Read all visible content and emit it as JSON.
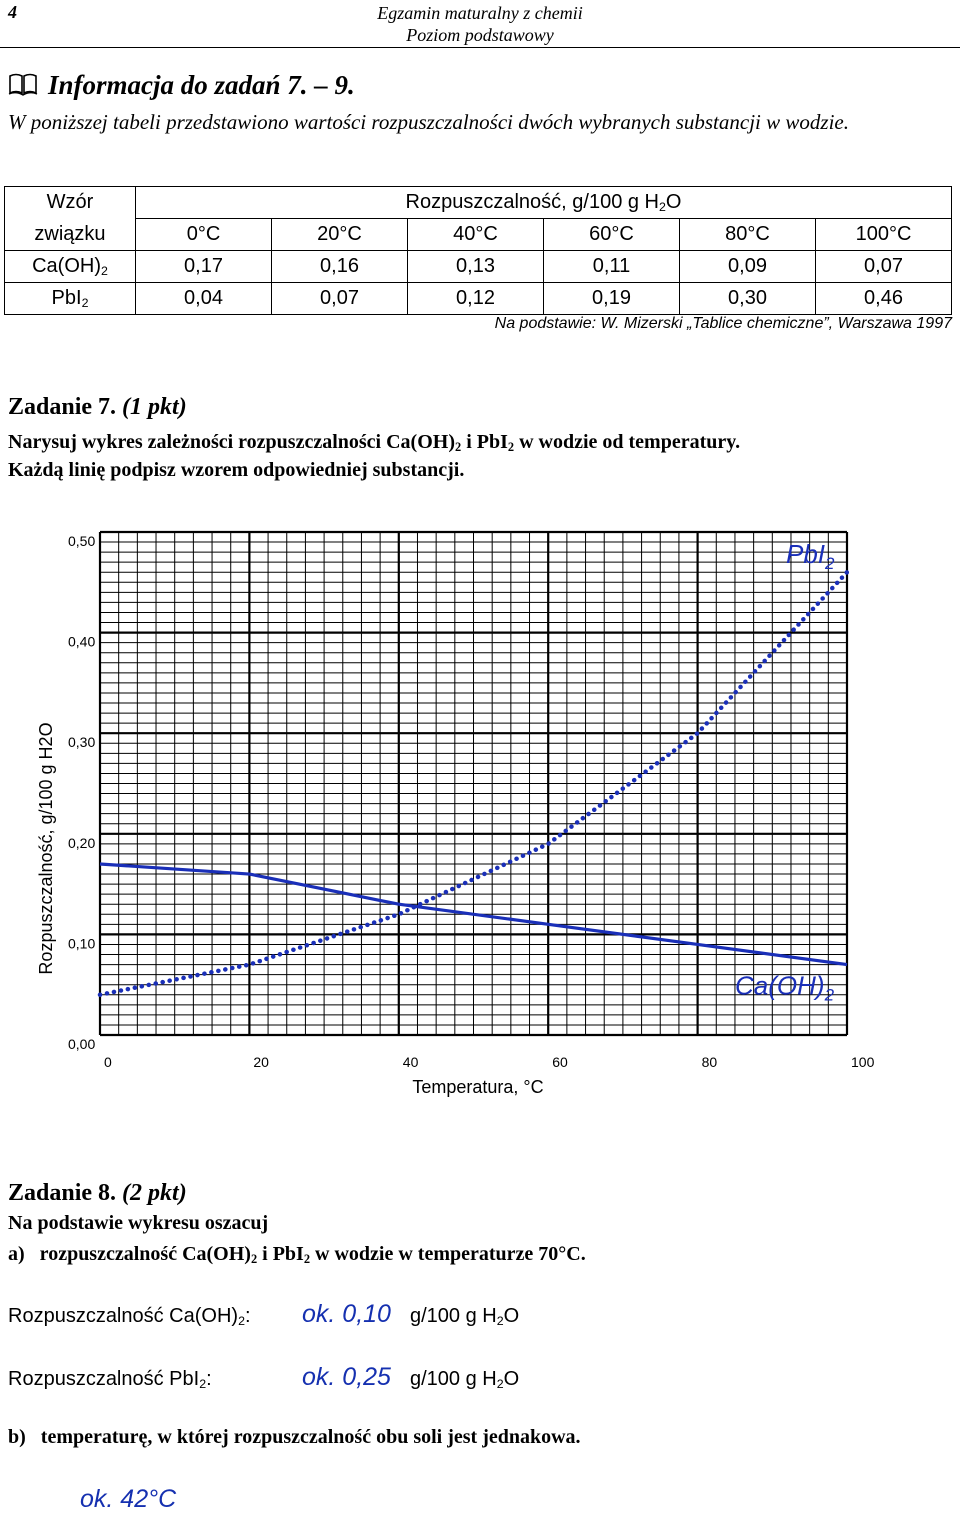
{
  "header": {
    "page_number": "4",
    "exam_line1": "Egzamin maturalny z chemii",
    "exam_line2": "Poziom podstawowy"
  },
  "info": {
    "icon": "book-icon",
    "heading": "Informacja do zadań 7. – 9.",
    "text": "W poniższej tabeli przedstawiono wartości rozpuszczalności dwóch wybranych substancji w wodzie."
  },
  "table": {
    "head_formula_line1": "Wzór",
    "head_formula_line2": "związku",
    "head_solubility_prefix": "Rozpuszczalność, g/100 g H",
    "head_solubility_sub": "2",
    "head_solubility_suffix": "O",
    "temperatures": [
      "0°C",
      "20°C",
      "40°C",
      "60°C",
      "80°C",
      "100°C"
    ],
    "rows": [
      {
        "formula": "Ca(OH)",
        "formula_sub": "2",
        "values": [
          "0,17",
          "0,16",
          "0,13",
          "0,11",
          "0,09",
          "0,07"
        ]
      },
      {
        "formula": "PbI",
        "formula_sub": "2",
        "values": [
          "0,04",
          "0,07",
          "0,12",
          "0,19",
          "0,30",
          "0,46"
        ]
      }
    ],
    "source": "Na podstawie: W. Mizerski „Tablice chemiczne”, Warszawa 1997"
  },
  "task7": {
    "title": "Zadanie 7.",
    "points": "(1 pkt)",
    "line1_a": "Narysuj wykres zależności rozpuszczalności Ca(OH)",
    "line1_b": " i PbI",
    "line1_c": " w wodzie od temperatury.",
    "sub": "2",
    "line2": "Każdą linię podpisz wzorem odpowiedniej substancji."
  },
  "chart_data": {
    "type": "line",
    "xlabel": "Temperatura, °C",
    "ylabel": "Rozpuszczalność, g/100 g H2O",
    "xlim": [
      0,
      100
    ],
    "ylim": [
      0,
      0.5
    ],
    "x_ticks": [
      "0",
      "20",
      "40",
      "60",
      "80",
      "100"
    ],
    "y_ticks": [
      "0,00",
      "0,10",
      "0,20",
      "0,30",
      "0,40",
      "0,50"
    ],
    "grid": true,
    "x": [
      0,
      20,
      40,
      60,
      80,
      100
    ],
    "series": [
      {
        "name": "Ca(OH)2",
        "label_main": "Ca(OH)",
        "label_sub": "2",
        "style": "solid",
        "color": "#1a2fb8",
        "values": [
          0.17,
          0.16,
          0.13,
          0.11,
          0.09,
          0.07
        ]
      },
      {
        "name": "PbI2",
        "label_main": "PbI",
        "label_sub": "2",
        "style": "dotted",
        "color": "#1a2fb8",
        "values": [
          0.04,
          0.07,
          0.12,
          0.19,
          0.3,
          0.46
        ]
      }
    ]
  },
  "task8": {
    "title": "Zadanie 8.",
    "points": "(2 pkt)",
    "intro": "Na podstawie wykresu oszacuj",
    "a_marker": "a)",
    "a_text_a": "rozpuszczalność Ca(OH)",
    "a_text_b": " i PbI",
    "a_text_c": " w wodzie w temperaturze 70°C.",
    "sub": "2",
    "row1_label": "Rozpuszczalność Ca(OH)",
    "row1_label_end": ":",
    "row1_value": "ok. 0,10",
    "row2_label": "Rozpuszczalność PbI",
    "row2_label_end": ":",
    "row2_value": "ok. 0,25",
    "unit_a": "g/100 g H",
    "unit_sub": "2",
    "unit_b": "O",
    "b_marker": "b)",
    "b_text": "temperaturę, w której rozpuszczalność obu soli jest jednakowa.",
    "b_answer": "ok. 42°C"
  }
}
